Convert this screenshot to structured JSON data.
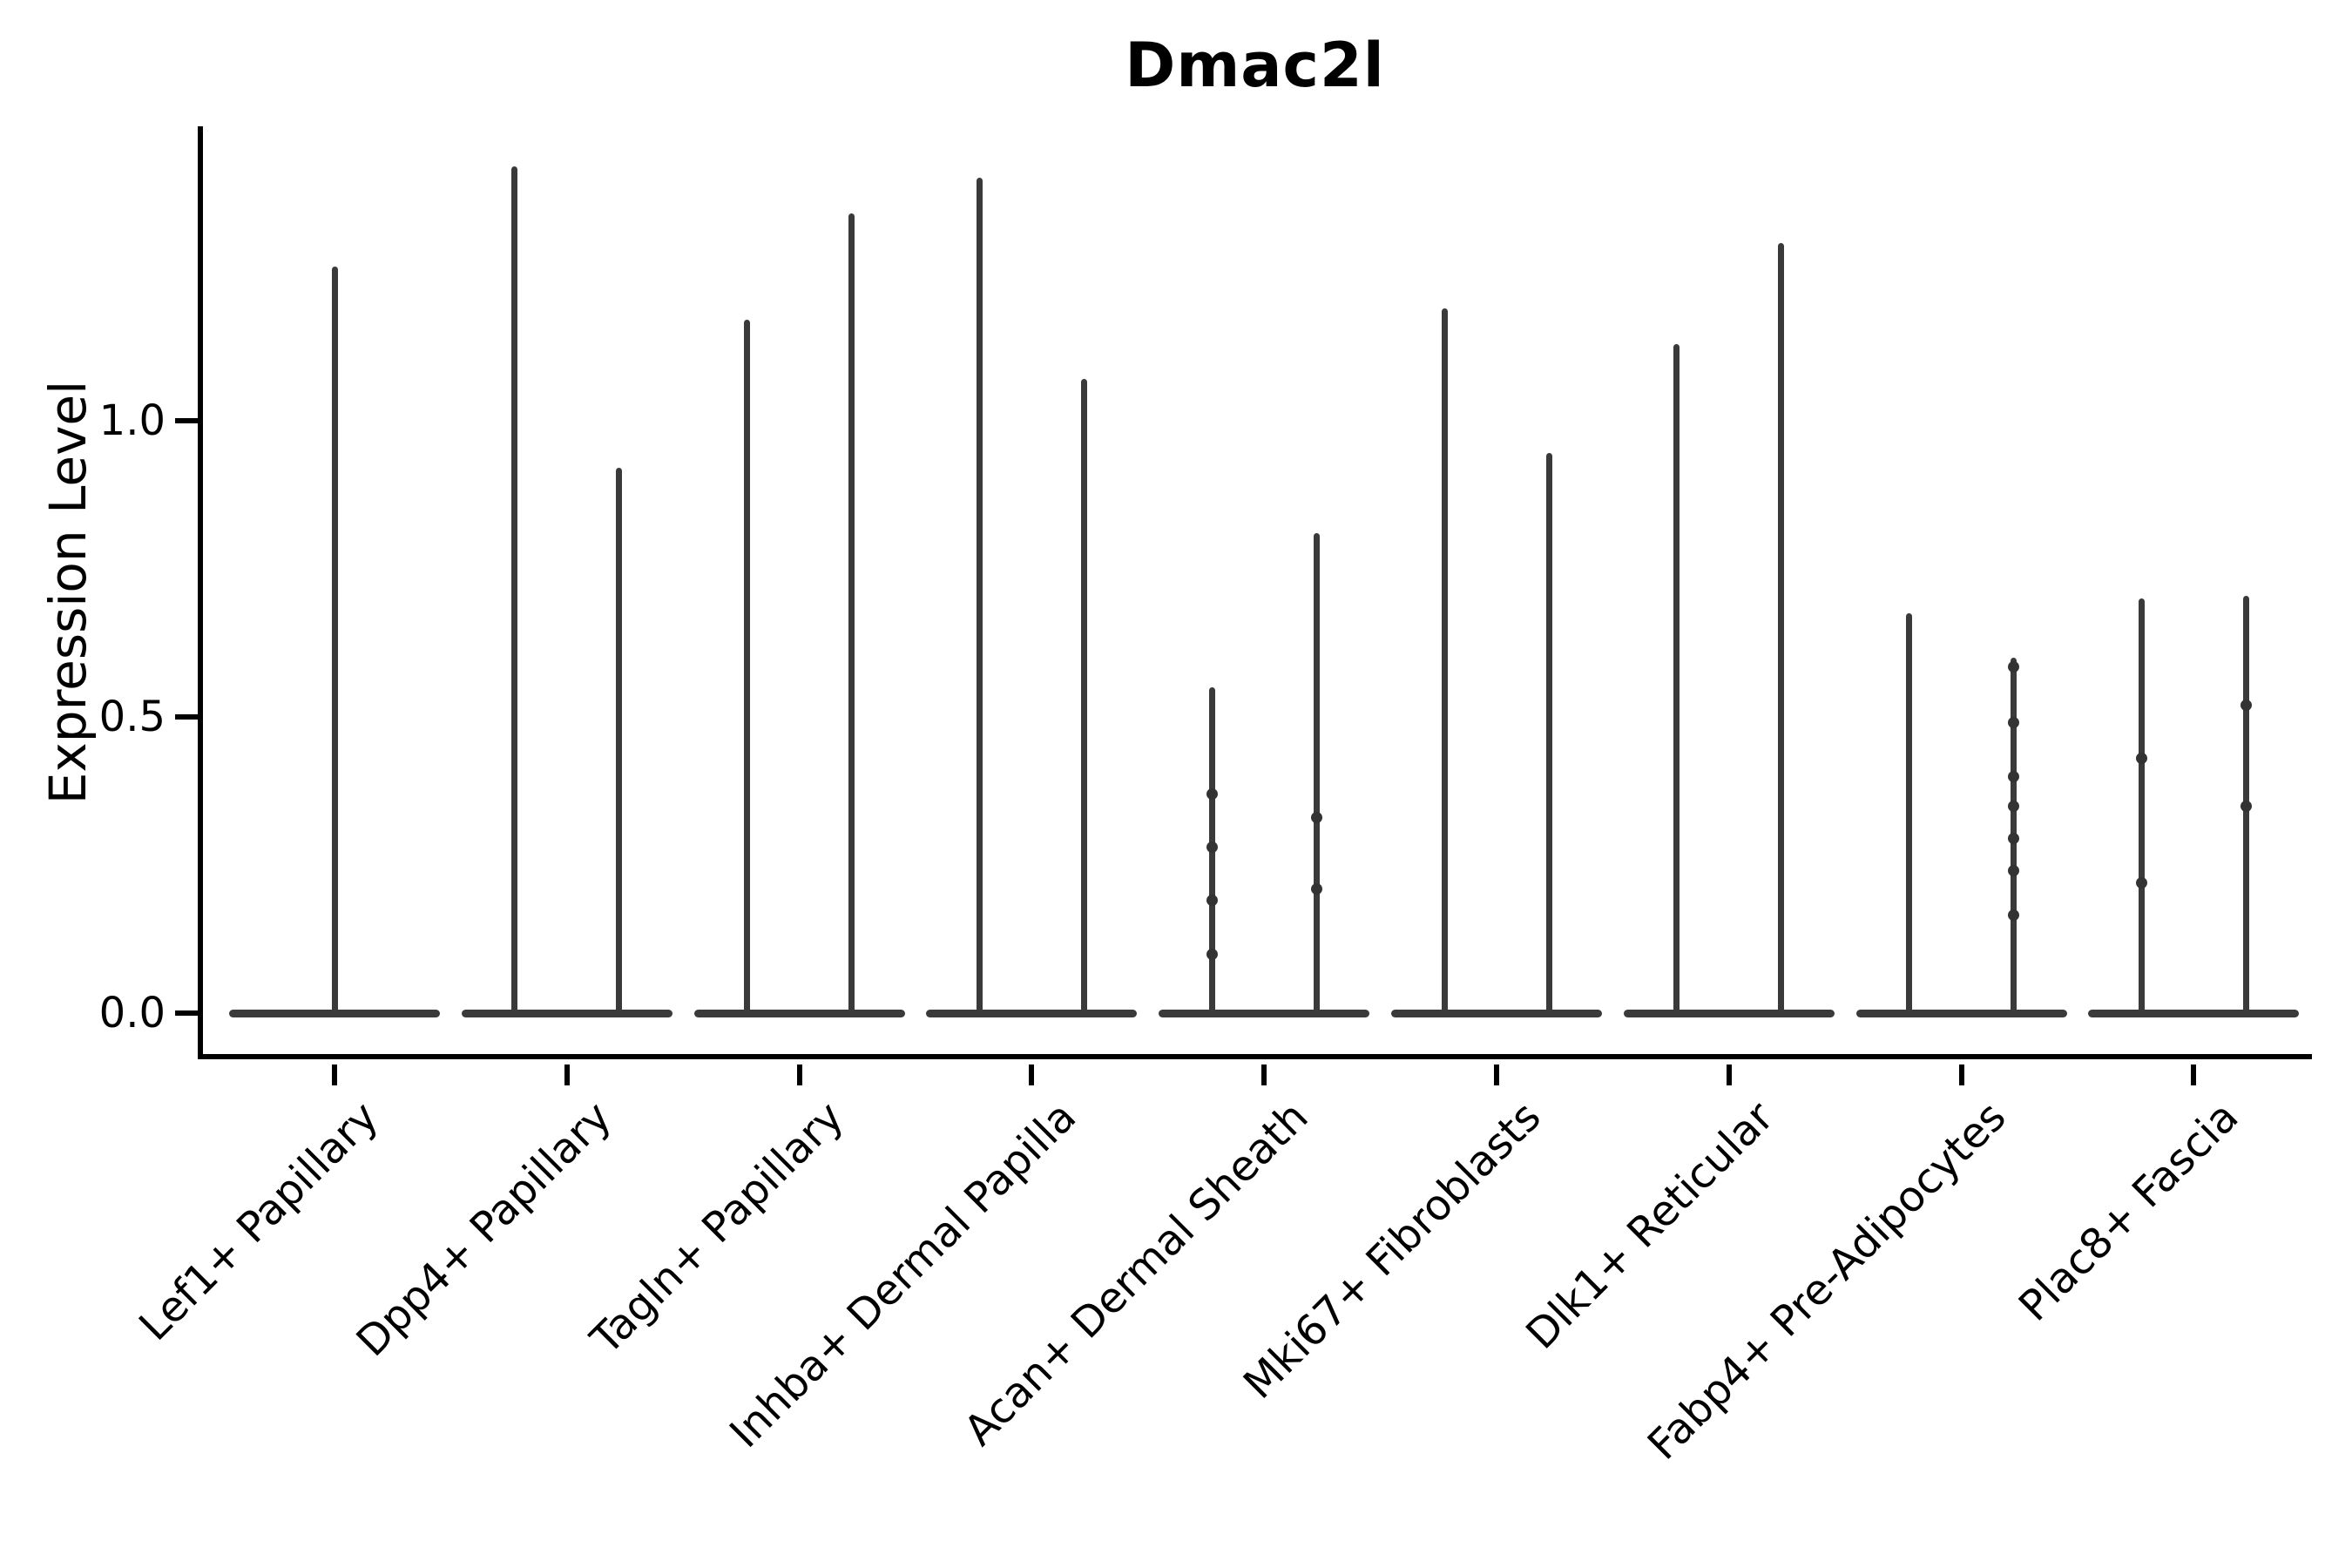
{
  "chart_data": {
    "type": "violin",
    "title": "Dmac2l",
    "ylabel": "Expression Level",
    "xlabel": "",
    "grid": false,
    "legend": "none",
    "ylim": [
      -0.08,
      1.5
    ],
    "yticks": [
      {
        "label": "0.0",
        "value": 0.0
      },
      {
        "label": "0.5",
        "value": 0.5
      },
      {
        "label": "1.0",
        "value": 1.0
      }
    ],
    "description": "Split needle-shaped violins: wide flat body at expression 0 with thin spikes rising to the max expression value; one violin per group (two groups per cell type, single full-width violin for the first).",
    "categories": [
      {
        "label": "Lef1+ Papillary",
        "violins": [
          {
            "max": 1.26,
            "dots": []
          }
        ]
      },
      {
        "label": "Dpp4+ Papillary",
        "violins": [
          {
            "max": 1.43,
            "dots": []
          },
          {
            "max": 0.92,
            "dots": []
          }
        ]
      },
      {
        "label": "Tagln+ Papillary",
        "violins": [
          {
            "max": 1.17,
            "dots": []
          },
          {
            "max": 1.35,
            "dots": []
          }
        ]
      },
      {
        "label": "Inhba+ Dermal Papilla",
        "violins": [
          {
            "max": 1.41,
            "dots": []
          },
          {
            "max": 1.07,
            "dots": []
          }
        ]
      },
      {
        "label": "Acan+ Dermal Sheath",
        "violins": [
          {
            "max": 0.55,
            "dots": [
              0.37,
              0.28,
              0.19,
              0.1
            ]
          },
          {
            "max": 0.81,
            "dots": [
              0.33,
              0.21
            ]
          }
        ]
      },
      {
        "label": "Mki67+ Fibroblasts",
        "violins": [
          {
            "max": 1.19,
            "dots": []
          },
          {
            "max": 0.945,
            "dots": []
          }
        ]
      },
      {
        "label": "Dlk1+ Reticular",
        "violins": [
          {
            "max": 1.13,
            "dots": []
          },
          {
            "max": 1.3,
            "dots": []
          }
        ]
      },
      {
        "label": "Fabp4+ Pre-Adipocytes",
        "violins": [
          {
            "max": 0.675,
            "dots": []
          },
          {
            "max": 0.6,
            "dots": [
              0.585,
              0.49,
              0.4,
              0.35,
              0.295,
              0.24,
              0.165
            ]
          }
        ]
      },
      {
        "label": "Plac8+ Fascia",
        "violins": [
          {
            "max": 0.7,
            "dots": [
              0.43,
              0.22
            ]
          },
          {
            "max": 0.705,
            "dots": [
              0.52,
              0.35
            ]
          }
        ]
      }
    ],
    "colors": {
      "violin": "#3a3a3a",
      "dot": "#333333",
      "axis": "#000000",
      "text": "#000000",
      "background": "#ffffff"
    }
  }
}
